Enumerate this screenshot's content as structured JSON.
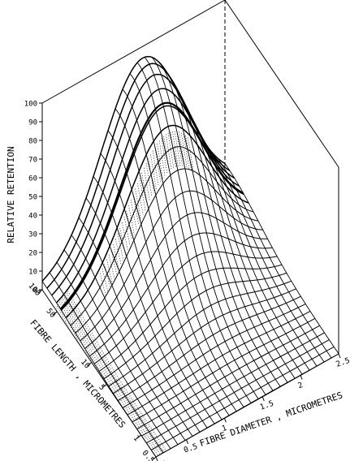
{
  "chart_data": {
    "type": "surface",
    "title": "",
    "zlabel": "RELATIVE RETENTION",
    "xlabel": "FIBRE LENGTH , MICROMETRES",
    "ylabel": "FIBRE DIAMETER , MICROMETRES",
    "z_ticks": [
      "0",
      "10",
      "20",
      "30",
      "40",
      "50",
      "60",
      "70",
      "80",
      "90",
      "100"
    ],
    "zlim": [
      0,
      100
    ],
    "length_ticks": [
      "100",
      "50",
      "10",
      "5",
      "1",
      "0.5"
    ],
    "length_tick_values": [
      100,
      50,
      10,
      5,
      1,
      0.5
    ],
    "length_range": [
      0.5,
      100
    ],
    "length_scale": "log",
    "diameter_ticks": [
      "0.1",
      "0.5",
      "1",
      "1.5",
      "2",
      "2.5"
    ],
    "diameter_tick_values": [
      0.1,
      0.5,
      1,
      1.5,
      2,
      2.5
    ],
    "diameter_range": [
      0.1,
      2.5
    ],
    "peak": {
      "relative_retention": 94
    },
    "grid": {
      "length_lines": 24,
      "diameter_lines": 25
    },
    "colors": {
      "line": "#000000",
      "background": "#ffffff"
    }
  }
}
